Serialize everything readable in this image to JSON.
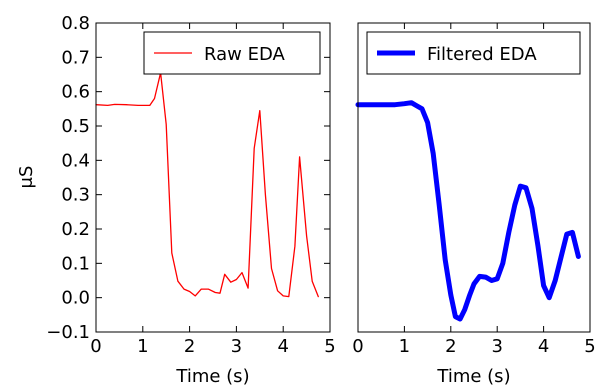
{
  "chart_data": [
    {
      "type": "line",
      "ylabel": "μS",
      "xlabel": "Time (s)",
      "xlim": [
        0,
        5
      ],
      "ylim": [
        -0.1,
        0.8
      ],
      "xticks": [
        "0",
        "1",
        "2",
        "3",
        "4",
        "5"
      ],
      "yticks": [
        "−0.1",
        "0.0",
        "0.1",
        "0.2",
        "0.3",
        "0.4",
        "0.5",
        "0.6",
        "0.7",
        "0.8"
      ],
      "grid": false,
      "legend_position": "top-right",
      "series": [
        {
          "name": "Raw EDA",
          "color": "#ff0000",
          "x": [
            0.0,
            0.25,
            0.4,
            0.65,
            0.9,
            1.15,
            1.25,
            1.38,
            1.5,
            1.62,
            1.75,
            1.88,
            2.0,
            2.12,
            2.25,
            2.4,
            2.55,
            2.65,
            2.75,
            2.88,
            3.0,
            3.12,
            3.25,
            3.38,
            3.5,
            3.62,
            3.75,
            3.88,
            4.0,
            4.12,
            4.25,
            4.35,
            4.5,
            4.62,
            4.75
          ],
          "y": [
            0.562,
            0.56,
            0.563,
            0.562,
            0.56,
            0.56,
            0.58,
            0.655,
            0.505,
            0.13,
            0.048,
            0.025,
            0.018,
            0.005,
            0.025,
            0.025,
            0.015,
            0.013,
            0.068,
            0.045,
            0.053,
            0.073,
            0.028,
            0.435,
            0.545,
            0.3,
            0.085,
            0.02,
            0.005,
            0.003,
            0.15,
            0.41,
            0.18,
            0.048,
            0.003
          ]
        }
      ]
    },
    {
      "type": "line",
      "xlabel": "Time (s)",
      "xlim": [
        0,
        5
      ],
      "ylim": [
        -0.1,
        0.8
      ],
      "xticks": [
        "0",
        "1",
        "2",
        "3",
        "4",
        "5"
      ],
      "grid": false,
      "legend_position": "top-right",
      "series": [
        {
          "name": "Filtered EDA",
          "color": "#0000ff",
          "x": [
            0.0,
            0.5,
            0.8,
            1.0,
            1.15,
            1.25,
            1.38,
            1.5,
            1.62,
            1.75,
            1.88,
            2.0,
            2.1,
            2.2,
            2.3,
            2.4,
            2.5,
            2.62,
            2.75,
            2.88,
            3.0,
            3.12,
            3.25,
            3.38,
            3.5,
            3.62,
            3.75,
            3.88,
            4.0,
            4.12,
            4.25,
            4.38,
            4.5,
            4.62,
            4.75
          ],
          "y": [
            0.562,
            0.562,
            0.562,
            0.565,
            0.568,
            0.56,
            0.55,
            0.51,
            0.42,
            0.27,
            0.11,
            0.008,
            -0.055,
            -0.062,
            -0.035,
            0.005,
            0.04,
            0.062,
            0.06,
            0.05,
            0.055,
            0.1,
            0.19,
            0.27,
            0.325,
            0.32,
            0.26,
            0.15,
            0.035,
            0.0,
            0.05,
            0.12,
            0.185,
            0.19,
            0.12
          ]
        }
      ]
    }
  ]
}
